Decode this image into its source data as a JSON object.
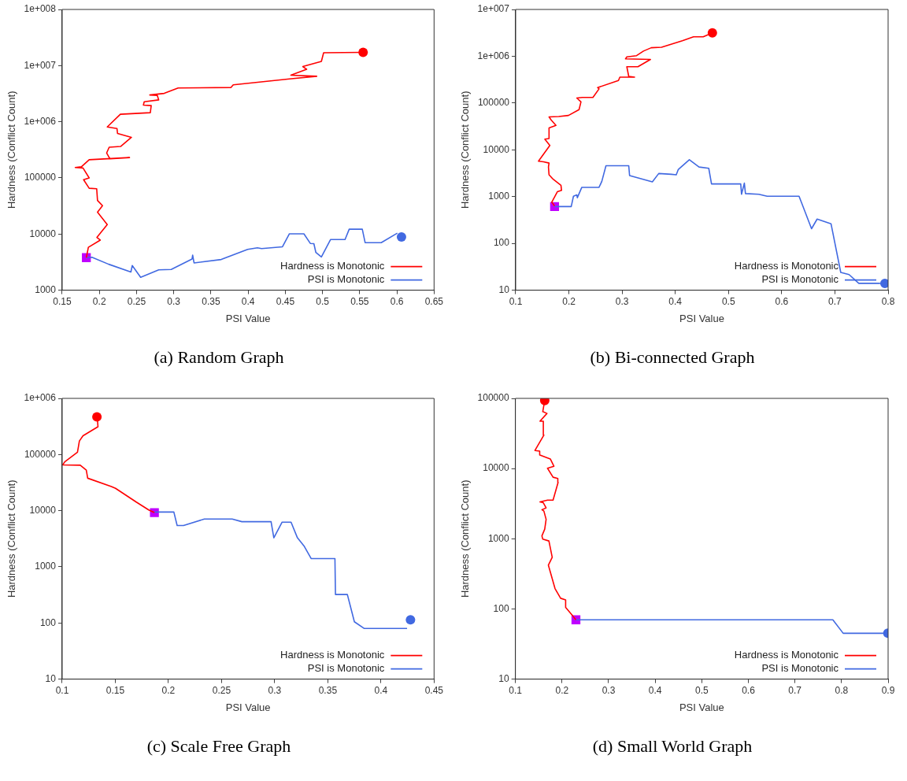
{
  "chart_data": [
    {
      "type": "line",
      "title": "(a) Random Graph",
      "xlabel": "PSI Value",
      "ylabel": "Hardness (Conflict Count)",
      "log": "y",
      "grid": false,
      "legend": "bottom right",
      "xlim": [
        0.15,
        0.65
      ],
      "xticks": [
        0.15,
        0.2,
        0.25,
        0.3,
        0.35,
        0.4,
        0.45,
        0.5,
        0.55,
        0.6,
        0.65
      ],
      "ylim": [
        1000,
        100000000
      ],
      "yticks": [
        1000,
        10000,
        100000,
        {
          "value": 1000000,
          "label": "1e+006"
        },
        {
          "value": 10000000,
          "label": "1e+007"
        },
        {
          "value": 100000000,
          "label": "1e+008"
        }
      ],
      "series": [
        {
          "name": "Hardness is Monotonic",
          "color": "#ff0000",
          "type": "line",
          "marker": "none",
          "x": [
            0.1825,
            0.1852,
            0.2012,
            0.1967,
            0.2106,
            0.1975,
            0.2042,
            0.1975,
            0.1964,
            0.1863,
            0.1788,
            0.1863,
            0.178,
            0.1676,
            0.1758,
            0.1863,
            0.2405,
            0.2143,
            0.2098,
            0.2132,
            0.2285,
            0.2431,
            0.2244,
            0.2237,
            0.2106,
            0.2282,
            0.2685,
            0.2697,
            0.2592,
            0.2603,
            0.2798,
            0.2779,
            0.2678,
            0.2872,
            0.3059,
            0.377,
            0.38,
            0.4555,
            0.4922,
            0.4574,
            0.4787,
            0.4735,
            0.4985,
            0.5015,
            0.5546
          ],
          "values": [
            3800,
            5800,
            7800,
            8700,
            14800,
            24500,
            32000,
            39600,
            64000,
            65300,
            93000,
            100000,
            150000,
            153000,
            158000,
            211000,
            230000,
            218000,
            278000,
            352000,
            363000,
            527000,
            619000,
            758000,
            808000,
            1360000,
            1450000,
            1940000,
            1980000,
            2270000,
            2450000,
            2940000,
            3000000,
            3200000,
            4000000,
            4080000,
            4540000,
            5800000,
            6460000,
            6740000,
            8600000,
            9600000,
            11900000,
            16900000,
            17200000
          ]
        },
        {
          "name": "PSI is Monotonic",
          "color": "#4169e1",
          "type": "line",
          "marker": "none",
          "x": [
            0.1825,
            0.19,
            0.2125,
            0.2424,
            0.2442,
            0.2555,
            0.2798,
            0.2966,
            0.3246,
            0.3254,
            0.3273,
            0.3639,
            0.3994,
            0.4125,
            0.4181,
            0.4462,
            0.4555,
            0.475,
            0.4836,
            0.4884,
            0.4911,
            0.4985,
            0.5109,
            0.5303,
            0.5359,
            0.5535,
            0.5573,
            0.5789,
            0.6006
          ],
          "values": [
            3800,
            3870,
            2900,
            2110,
            2750,
            1700,
            2300,
            2340,
            3590,
            4220,
            3060,
            3520,
            5330,
            5690,
            5510,
            5930,
            10100,
            10100,
            6810,
            6740,
            4690,
            3920,
            8000,
            8000,
            12200,
            12200,
            7030,
            7030,
            10400
          ]
        },
        {
          "color": "#ff0000",
          "type": "scatter",
          "marker": "circle",
          "x": [
            0.5546
          ],
          "values": [
            17200000
          ]
        },
        {
          "color": "#4169e1",
          "type": "scatter",
          "marker": "circle",
          "x": [
            0.6062
          ],
          "values": [
            8900
          ]
        },
        {
          "color": "#bf00ff",
          "type": "scatter",
          "marker": "square",
          "x": [
            0.1825
          ],
          "values": [
            3800
          ]
        }
      ]
    },
    {
      "type": "line",
      "title": "(b) Bi-connected Graph",
      "xlabel": "PSI Value",
      "ylabel": "Hardness (Conflict Count)",
      "log": "y",
      "grid": false,
      "legend": "bottom right",
      "xlim": [
        0.1,
        0.8
      ],
      "xticks": [
        0.1,
        0.2,
        0.3,
        0.4,
        0.5,
        0.6,
        0.7,
        0.8
      ],
      "ylim": [
        10,
        10000000
      ],
      "yticks": [
        10,
        100,
        1000,
        10000,
        100000,
        {
          "value": 1000000,
          "label": "1e+006"
        },
        {
          "value": 10000000,
          "label": "1e+007"
        }
      ],
      "series": [
        {
          "name": "Hardness is Monotonic",
          "color": "#ff0000",
          "type": "line",
          "marker": "none",
          "x": [
            0.1731,
            0.1679,
            0.1783,
            0.1862,
            0.1851,
            0.1705,
            0.1627,
            0.1616,
            0.1627,
            0.1522,
            0.1428,
            0.1642,
            0.1548,
            0.1627,
            0.1627,
            0.1757,
            0.1668,
            0.1627,
            0.1809,
            0.1992,
            0.2191,
            0.2227,
            0.2149,
            0.2253,
            0.2452,
            0.2567,
            0.254,
            0.2932,
            0.2958,
            0.3235,
            0.3125,
            0.3089,
            0.3298,
            0.3533,
            0.3063,
            0.3089,
            0.3272,
            0.3402,
            0.3548,
            0.3742,
            0.4133,
            0.4342,
            0.4525,
            0.4697
          ],
          "values": [
            630,
            762,
            1270,
            1360,
            1750,
            2350,
            2930,
            4300,
            5210,
            5560,
            5700,
            12400,
            16900,
            17400,
            29400,
            33400,
            43200,
            50400,
            51600,
            54300,
            72100,
            106000,
            128000,
            132000,
            132000,
            201000,
            214000,
            303000,
            357000,
            357000,
            371000,
            597000,
            597000,
            855000,
            877000,
            971000,
            1030000,
            1290000,
            1520000,
            1560000,
            2150000,
            2600000,
            2600000,
            3160000
          ]
        },
        {
          "name": "PSI is Monotonic",
          "color": "#4169e1",
          "type": "line",
          "marker": "none",
          "x": [
            0.1731,
            0.2044,
            0.2086,
            0.2149,
            0.2159,
            0.2243,
            0.2567,
            0.2619,
            0.2697,
            0.3125,
            0.3141,
            0.3569,
            0.3689,
            0.3924,
            0.4018,
            0.4055,
            0.4264,
            0.4446,
            0.4629,
            0.4681,
            0.523,
            0.5245,
            0.5298,
            0.5319,
            0.5569,
            0.5726,
            0.6326,
            0.6561,
            0.6666,
            0.6927,
            0.711,
            0.7266,
            0.7449,
            0.785
          ],
          "values": [
            612,
            612,
            1020,
            1090,
            948,
            1580,
            1580,
            2120,
            4580,
            4580,
            2820,
            2070,
            3120,
            3000,
            2920,
            3780,
            6150,
            4300,
            4030,
            1870,
            1870,
            1120,
            1940,
            1160,
            1120,
            1020,
            1020,
            206,
            331,
            263,
            24,
            21.6,
            14,
            14
          ]
        },
        {
          "color": "#ff0000",
          "type": "scatter",
          "marker": "circle",
          "x": [
            0.4697
          ],
          "values": [
            3160000
          ]
        },
        {
          "color": "#4169e1",
          "type": "scatter",
          "marker": "circle",
          "x": [
            0.794
          ],
          "values": [
            14
          ]
        },
        {
          "color": "#bf00ff",
          "type": "scatter",
          "marker": "square",
          "x": [
            0.1731
          ],
          "values": [
            612
          ]
        }
      ]
    },
    {
      "type": "line",
      "title": "(c) Scale Free Graph",
      "xlabel": "PSI Value",
      "ylabel": "Hardness (Conflict Count)",
      "log": "y",
      "grid": false,
      "legend": "bottom right",
      "xlim": [
        0.1,
        0.45
      ],
      "xticks": [
        0.1,
        0.15,
        0.2,
        0.25,
        0.3,
        0.35,
        0.4,
        0.45
      ],
      "ylim": [
        10,
        1000000
      ],
      "yticks": [
        10,
        100,
        1000,
        10000,
        100000,
        {
          "value": 1000000,
          "label": "1e+006"
        }
      ],
      "series": [
        {
          "name": "Hardness is Monotonic",
          "color": "#ff0000",
          "type": "line",
          "marker": "none",
          "x": [
            0.1868,
            0.1815,
            0.1698,
            0.1502,
            0.1463,
            0.124,
            0.1227,
            0.117,
            0.1005,
            0.1024,
            0.1144,
            0.1162,
            0.1196,
            0.1337,
            0.1332,
            0.1327
          ],
          "values": [
            9250,
            10300,
            14200,
            25000,
            26900,
            37900,
            52700,
            64600,
            65300,
            74200,
            110000,
            174000,
            216000,
            313000,
            409000,
            470000
          ]
        },
        {
          "name": "PSI is Monotonic",
          "color": "#4169e1",
          "type": "line",
          "marker": "none",
          "x": [
            0.1868,
            0.2051,
            0.2082,
            0.2142,
            0.2338,
            0.26,
            0.2691,
            0.2966,
            0.2992,
            0.307,
            0.3154,
            0.3214,
            0.3279,
            0.3344,
            0.3567,
            0.3572,
            0.3684,
            0.375,
            0.3841,
            0.4246
          ],
          "values": [
            9460,
            9460,
            5430,
            5430,
            7100,
            7100,
            6370,
            6370,
            3290,
            6240,
            6240,
            3290,
            2310,
            1400,
            1400,
            321,
            321,
            105,
            80,
            80
          ]
        },
        {
          "color": "#ff0000",
          "type": "scatter",
          "marker": "circle",
          "x": [
            0.1327
          ],
          "values": [
            470000
          ]
        },
        {
          "color": "#4169e1",
          "type": "scatter",
          "marker": "circle",
          "x": [
            0.4278
          ],
          "values": [
            114
          ]
        },
        {
          "color": "#bf00ff",
          "type": "scatter",
          "marker": "square",
          "x": [
            0.1868
          ],
          "values": [
            9250
          ]
        }
      ]
    },
    {
      "type": "line",
      "title": "(d) Small World Graph",
      "xlabel": "PSI Value",
      "ylabel": "Hardness (Conflict Count)",
      "log": "y",
      "grid": false,
      "legend": "bottom right",
      "xlim": [
        0.1,
        0.9
      ],
      "xticks": [
        0.1,
        0.2,
        0.3,
        0.4,
        0.5,
        0.6,
        0.7,
        0.8,
        0.9
      ],
      "ylim": [
        10,
        100000
      ],
      "yticks": [
        10,
        100,
        1000,
        10000,
        100000
      ],
      "series": [
        {
          "name": "Hardness is Monotonic",
          "color": "#ff0000",
          "type": "line",
          "marker": "none",
          "x": [
            0.2299,
            0.221,
            0.2078,
            0.2078,
            0.197,
            0.185,
            0.1707,
            0.179,
            0.1719,
            0.1587,
            0.1569,
            0.1629,
            0.1659,
            0.1611,
            0.1569,
            0.1659,
            0.1599,
            0.1527,
            0.1689,
            0.1808,
            0.1916,
            0.191,
            0.1808,
            0.1689,
            0.1826,
            0.1749,
            0.1527,
            0.1521,
            0.1419,
            0.1611,
            0.1599,
            0.1527,
            0.1677,
            0.1587,
            0.1629
          ],
          "values": [
            70,
            83,
            105,
            134,
            142,
            195,
            421,
            543,
            930,
            986,
            1100,
            1370,
            1890,
            2480,
            2590,
            2750,
            3260,
            3350,
            3550,
            3550,
            6350,
            7220,
            7530,
            10100,
            10800,
            13700,
            15600,
            17700,
            18100,
            30000,
            47200,
            47200,
            61000,
            64700,
            93300
          ]
        },
        {
          "name": "PSI is Monotonic",
          "color": "#4169e1",
          "type": "line",
          "marker": "none",
          "x": [
            0.2299,
            0.7814,
            0.8036,
            0.895
          ],
          "values": [
            70,
            70,
            45,
            45
          ]
        },
        {
          "color": "#ff0000",
          "type": "scatter",
          "marker": "circle",
          "x": [
            0.1629
          ],
          "values": [
            93300
          ]
        },
        {
          "color": "#4169e1",
          "type": "scatter",
          "marker": "circle",
          "x": [
            0.8994
          ],
          "values": [
            45
          ]
        },
        {
          "color": "#bf00ff",
          "type": "scatter",
          "marker": "square",
          "x": [
            0.2299
          ],
          "values": [
            70
          ]
        }
      ]
    }
  ]
}
